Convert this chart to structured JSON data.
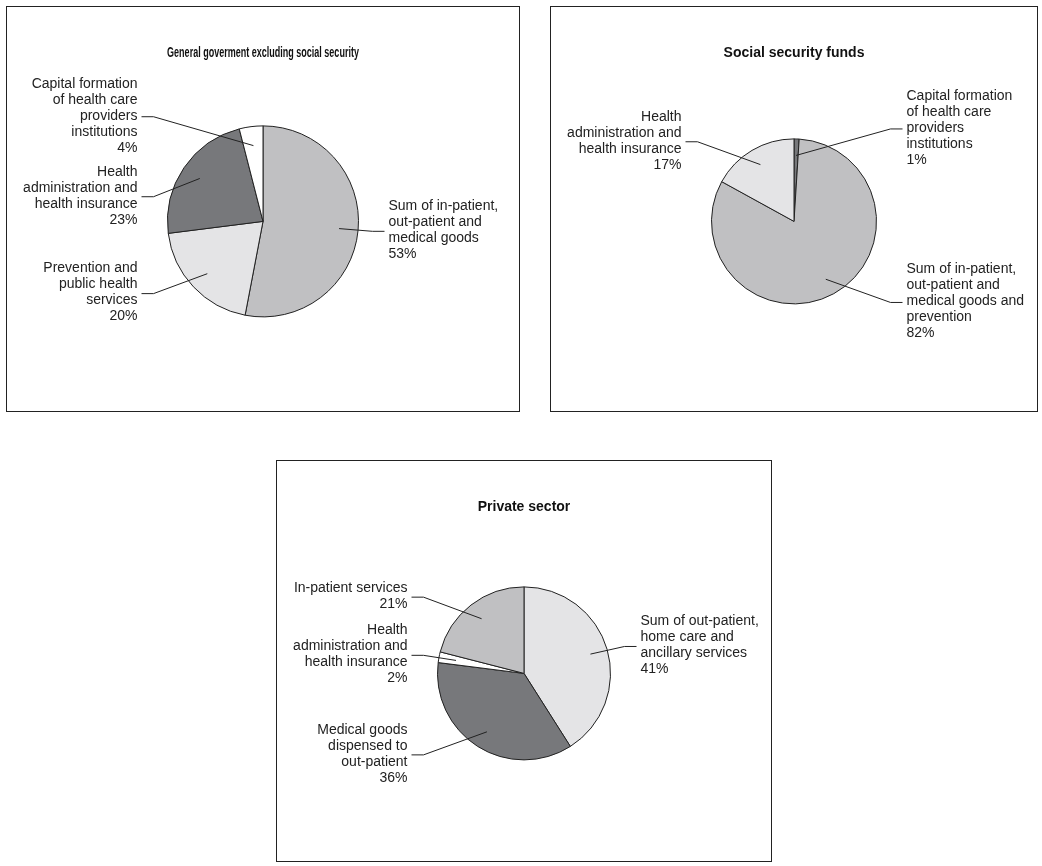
{
  "chart_data": [
    {
      "type": "pie",
      "title": "General goverment excluding social security",
      "categories": [
        "Sum of in-patient, out-patient and medical goods",
        "Prevention and public health services",
        "Health administration and health insurance",
        "Capital formation of health care providers institutions"
      ],
      "values": [
        53,
        20,
        23,
        4
      ],
      "value_labels": [
        "53%",
        "20%",
        "23%",
        "4%"
      ],
      "colors": [
        "#c0c0c2",
        "#e4e4e6",
        "#77787b",
        "#ffffff"
      ],
      "legend": false
    },
    {
      "type": "pie",
      "title": "Social security funds",
      "categories": [
        "Capital formation of health care providers institutions",
        "Sum of in-patient, out-patient and medical goods and prevention",
        "Health administration and health insurance"
      ],
      "values": [
        1,
        82,
        17
      ],
      "value_labels": [
        "1%",
        "82%",
        "17%"
      ],
      "colors": [
        "#77787b",
        "#c0c0c2",
        "#e4e4e6"
      ],
      "legend": false
    },
    {
      "type": "pie",
      "title": "Private sector",
      "categories": [
        "Sum of out-patient, home care and ancillary services",
        "Medical goods dispensed to out-patient",
        "Health administration and health insurance",
        "In-patient services"
      ],
      "values": [
        41,
        36,
        2,
        21
      ],
      "value_labels": [
        "41%",
        "36%",
        "2%",
        "21%"
      ],
      "colors": [
        "#e4e4e6",
        "#77787b",
        "#ffffff",
        "#c0c0c2"
      ],
      "legend": false
    }
  ]
}
